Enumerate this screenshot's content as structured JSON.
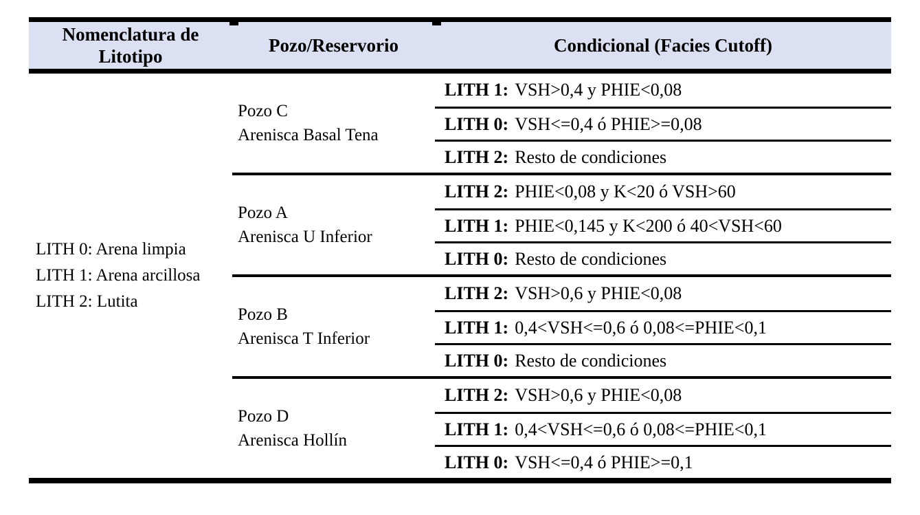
{
  "table": {
    "colors": {
      "header_bg": "#dbe1f3",
      "border": "#000000",
      "text": "#000000"
    },
    "headers": {
      "col1": "Nomenclatura de Litotipo",
      "col2": "Pozo/Reservorio",
      "col3": "Condicional (Facies Cutoff)"
    },
    "lithotypes": [
      "LITH 0: Arena limpia",
      "LITH 1: Arena arcillosa",
      "LITH 2: Lutita"
    ],
    "groups": [
      {
        "well": "Pozo C",
        "reservoir": "Arenisca Basal Tena",
        "conditions": [
          {
            "label": "LITH 1:",
            "text": "VSH>0,4 y PHIE<0,08"
          },
          {
            "label": "LITH 0:",
            "text": "VSH<=0,4 ó PHIE>=0,08"
          },
          {
            "label": "LITH 2:",
            "text": "Resto de condiciones"
          }
        ]
      },
      {
        "well": "Pozo A",
        "reservoir": "Arenisca U Inferior",
        "conditions": [
          {
            "label": "LITH 2:",
            "text": "PHIE<0,08 y K<20 ó VSH>60"
          },
          {
            "label": "LITH 1:",
            "text": "PHIE<0,145 y K<200 ó 40<VSH<60"
          },
          {
            "label": "LITH 0:",
            "text": "Resto de condiciones"
          }
        ]
      },
      {
        "well": "Pozo B",
        "reservoir": "Arenisca T Inferior",
        "conditions": [
          {
            "label": "LITH 2:",
            "text": "VSH>0,6 y PHIE<0,08"
          },
          {
            "label": "LITH 1:",
            "text": "0,4<VSH<=0,6 ó 0,08<=PHIE<0,1"
          },
          {
            "label": "LITH 0:",
            "text": "Resto de condiciones"
          }
        ]
      },
      {
        "well": "Pozo D",
        "reservoir": "Arenisca Hollín",
        "conditions": [
          {
            "label": "LITH 2:",
            "text": "VSH>0,6 y PHIE<0,08"
          },
          {
            "label": "LITH 1:",
            "text": "0,4<VSH<=0,6 ó 0,08<=PHIE<0,1"
          },
          {
            "label": "LITH 0:",
            "text": "VSH<=0,4 ó PHIE>=0,1"
          }
        ]
      }
    ]
  }
}
